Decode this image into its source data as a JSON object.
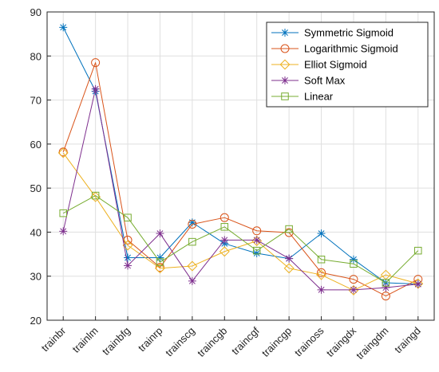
{
  "chart_data": {
    "type": "line",
    "categories": [
      "trainbr",
      "trainlm",
      "trainbfg",
      "trainrp",
      "trainscg",
      "traincgb",
      "traincgf",
      "traincgp",
      "trainoss",
      "traingdx",
      "traingdm",
      "traingd"
    ],
    "ylim": [
      20,
      90
    ],
    "yticks": [
      20,
      30,
      40,
      50,
      60,
      70,
      80,
      90
    ],
    "grid": true,
    "legend_position": "top-right",
    "title": "",
    "xlabel": "",
    "ylabel": "",
    "series": [
      {
        "name": "Symmetric Sigmoid",
        "color": "#0072BD",
        "marker": "asterisk",
        "values": [
          86.5,
          72.0,
          34.2,
          34.2,
          42.2,
          37.4,
          35.2,
          34.0,
          39.7,
          33.8,
          28.5,
          28.2
        ]
      },
      {
        "name": "Logarithmic Sigmoid",
        "color": "#D95319",
        "marker": "circle",
        "values": [
          58.2,
          78.5,
          38.2,
          32.0,
          41.8,
          43.3,
          40.3,
          39.9,
          30.8,
          29.3,
          25.5,
          29.3
        ]
      },
      {
        "name": "Elliot Sigmoid",
        "color": "#EDB120",
        "marker": "diamond",
        "values": [
          58.0,
          48.0,
          37.0,
          31.8,
          32.3,
          35.6,
          38.0,
          31.8,
          30.3,
          26.8,
          30.3,
          28.3
        ]
      },
      {
        "name": "Soft Max",
        "color": "#7E2F8E",
        "marker": "asterisk",
        "values": [
          40.2,
          72.5,
          32.4,
          39.7,
          28.9,
          38.2,
          38.2,
          34.0,
          26.9,
          26.9,
          27.4,
          28.2
        ]
      },
      {
        "name": "Linear",
        "color": "#77AC30",
        "marker": "square",
        "values": [
          44.3,
          48.3,
          43.3,
          33.2,
          37.8,
          41.2,
          35.8,
          40.7,
          33.8,
          32.8,
          28.5,
          35.8
        ]
      }
    ]
  }
}
